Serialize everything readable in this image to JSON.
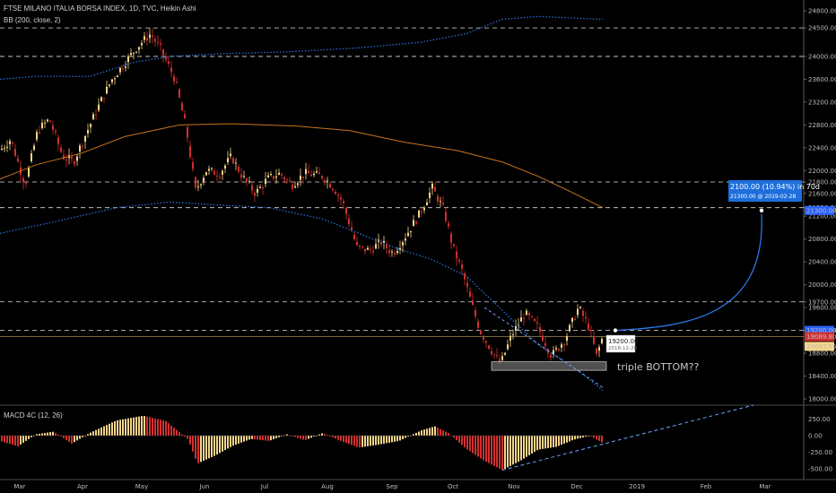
{
  "header": {
    "title": "FTSE MILANO ITALIA BORSA INDEX, 1D, TVC, Heikin Ashi",
    "indicator": "BB (200, close, 2)"
  },
  "macd_panel": {
    "label": "MACD 4C (12, 26)"
  },
  "annotation": {
    "projection_label": "2100.00 (10.94%) in 70d",
    "projection_sub": "21300.00  @ 2019-02-28",
    "pivot_price": "19200.00",
    "pivot_date": "2018-12-20",
    "pattern_text": "triple BOTTOM??"
  },
  "price_badges": {
    "upper": {
      "text": "19200.00",
      "color": "#2962ff"
    },
    "current": {
      "text": "19089.80",
      "color": "#d32f2f"
    },
    "previous": {
      "text": "19087.55",
      "color": "#f6d58b"
    },
    "target": {
      "text": "21300.00",
      "color": "#2962ff"
    }
  },
  "colors": {
    "up": "#f6d58b",
    "down": "#d32f2f",
    "ma": "#c8741c",
    "bands": "#2a6ed6",
    "guide": "#6fa7ff"
  },
  "chart_data": [
    {
      "type": "candlestick",
      "title": "FTSE MILANO ITALIA BORSA INDEX, 1D, TVC, Heikin Ashi",
      "x_ticks": [
        "Mar",
        "Apr",
        "May",
        "Jun",
        "Jul",
        "Aug",
        "Sep",
        "Oct",
        "Nov",
        "Dec",
        "2019",
        "Feb",
        "Mar"
      ],
      "y_ticks": [
        18000,
        18400,
        18800,
        19200,
        19600,
        19700,
        20000,
        20400,
        20800,
        21200,
        21300,
        21350,
        21600,
        21800,
        22000,
        22400,
        22800,
        23200,
        23600,
        24000,
        24500,
        24800
      ],
      "horizontal_levels": [
        24500,
        24000,
        21800,
        21350,
        19700,
        19200
      ],
      "close_series": [
        [
          "Mar",
          22350
        ],
        [
          "Mar",
          22550
        ],
        [
          "Mar",
          21750
        ],
        [
          "Mar",
          22700
        ],
        [
          "Apr",
          22200
        ],
        [
          "Apr",
          23000
        ],
        [
          "Apr",
          23600
        ],
        [
          "Apr",
          23800
        ],
        [
          "May",
          24100
        ],
        [
          "May",
          24350
        ],
        [
          "May",
          24100
        ],
        [
          "May",
          23300
        ],
        [
          "Jun",
          22300
        ],
        [
          "Jun",
          21700
        ],
        [
          "Jun",
          22000
        ],
        [
          "Jun",
          22200
        ],
        [
          "Jul",
          21950
        ],
        [
          "Jul",
          21600
        ],
        [
          "Jul",
          21750
        ],
        [
          "Jul",
          21850
        ],
        [
          "Aug",
          21900
        ],
        [
          "Aug",
          21600
        ],
        [
          "Aug",
          21200
        ],
        [
          "Aug",
          20500
        ],
        [
          "Sep",
          20650
        ],
        [
          "Sep",
          20850
        ],
        [
          "Sep",
          21400
        ],
        [
          "Sep",
          21700
        ],
        [
          "Oct",
          20700
        ],
        [
          "Oct",
          19700
        ],
        [
          "Oct",
          19050
        ],
        [
          "Oct",
          18650
        ],
        [
          "Nov",
          19300
        ],
        [
          "Nov",
          19100
        ],
        [
          "Nov",
          18700
        ],
        [
          "Nov",
          19150
        ],
        [
          "Dec",
          19450
        ],
        [
          "Dec",
          18700
        ],
        [
          "Dec",
          19090
        ]
      ],
      "bollinger": {
        "period": 200,
        "source": "close",
        "mult": 2
      },
      "projection": {
        "from": [
          "2018-12-20",
          19200
        ],
        "to": [
          "2019-02-28",
          21300
        ],
        "change": 2100.0,
        "percent": 10.94,
        "days": 70
      },
      "pattern_zone": {
        "low": 18500,
        "high": 18650
      }
    },
    {
      "type": "bar",
      "title": "MACD 4C (12, 26)",
      "y_ticks": [
        250,
        0,
        -250,
        -500
      ],
      "values_description": "histogram"
    }
  ]
}
